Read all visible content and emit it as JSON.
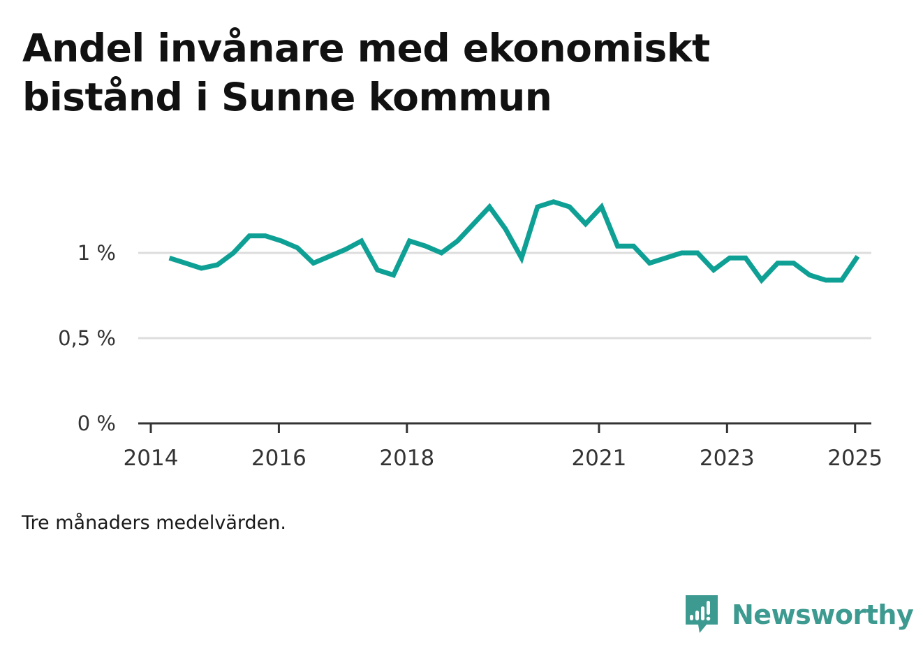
{
  "chart_data": {
    "type": "line",
    "title": "Andel invånare med ekonomiskt bistånd i Sunne kommun",
    "subtitle": "",
    "xlabel": "",
    "ylabel": "",
    "ylim": [
      0,
      1.5
    ],
    "xlim": [
      2014.0,
      2025.45
    ],
    "grid": true,
    "legend": "none",
    "line_color": "#0fa095",
    "gridline_color": "#dddddd",
    "y_ticks": [
      {
        "value": 0,
        "label": "0 %"
      },
      {
        "value": 0.5,
        "label": "0,5 %"
      },
      {
        "value": 1,
        "label": "1 %"
      }
    ],
    "x_ticks": [
      {
        "value": 2014.0,
        "label": "2014"
      },
      {
        "value": 2016.0,
        "label": "2016"
      },
      {
        "value": 2018.0,
        "label": "2018"
      },
      {
        "value": 2021.0,
        "label": "2021"
      },
      {
        "value": 2023.0,
        "label": "2023"
      },
      {
        "value": 2025.0,
        "label": "2025"
      }
    ],
    "series": [
      {
        "name": "",
        "x": [
          2014.29,
          2014.54,
          2014.79,
          2015.04,
          2015.29,
          2015.54,
          2015.79,
          2016.04,
          2016.29,
          2016.54,
          2016.79,
          2017.04,
          2017.29,
          2017.54,
          2017.79,
          2018.04,
          2018.29,
          2018.54,
          2018.79,
          2019.04,
          2019.29,
          2019.54,
          2019.79,
          2020.04,
          2020.29,
          2020.54,
          2020.79,
          2021.04,
          2021.29,
          2021.54,
          2021.79,
          2022.04,
          2022.29,
          2022.54,
          2022.79,
          2023.04,
          2023.29,
          2023.54,
          2023.79,
          2024.04,
          2024.29,
          2024.54,
          2024.79,
          2025.04
        ],
        "y": [
          0.97,
          0.94,
          0.91,
          0.93,
          1.0,
          1.1,
          1.1,
          1.07,
          1.03,
          0.94,
          0.98,
          1.02,
          1.07,
          0.9,
          0.87,
          1.07,
          1.04,
          1.0,
          1.07,
          1.17,
          1.27,
          1.14,
          0.97,
          1.27,
          1.3,
          1.27,
          1.17,
          1.27,
          1.04,
          1.04,
          0.94,
          0.97,
          1.0,
          1.0,
          0.9,
          0.97,
          0.97,
          0.84,
          0.94,
          0.94,
          0.87,
          0.84,
          0.84,
          0.98
        ]
      }
    ]
  },
  "footnote": "Tre månaders medelvärden.",
  "brand": {
    "name": "Newsworthy",
    "icon": "newsworthy-bar-chart-bubble-icon",
    "color": "#3d9a90"
  }
}
